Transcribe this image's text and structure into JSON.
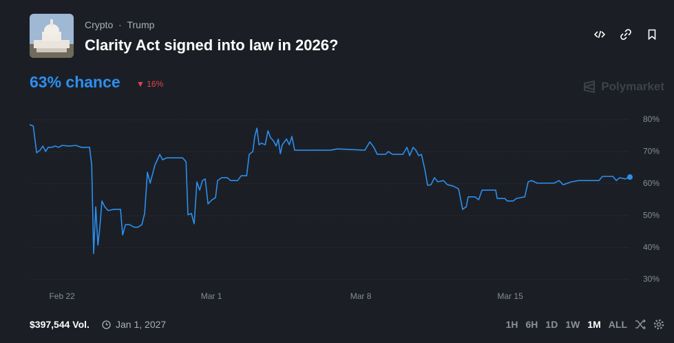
{
  "header": {
    "category": "Crypto",
    "tag": "Trump",
    "title": "Clarity Act signed into law in 2026?"
  },
  "chance": {
    "label": "63% chance",
    "change": "16%"
  },
  "brand": "Polymarket",
  "chart_data": {
    "type": "line",
    "x": [
      -1.52,
      -1.35,
      -1.19,
      -1.03,
      -0.9,
      -0.77,
      -0.65,
      -0.48,
      -0.32,
      -0.16,
      0,
      0.32,
      0.65,
      0.9,
      1.29,
      1.39,
      1.48,
      1.58,
      1.68,
      1.77,
      1.87,
      2.0,
      2.16,
      2.42,
      2.74,
      2.84,
      2.97,
      3.16,
      3.39,
      3.55,
      3.74,
      3.87,
      4.0,
      4.13,
      4.35,
      4.58,
      4.71,
      4.9,
      5.65,
      5.81,
      5.9,
      6.06,
      6.19,
      6.32,
      6.45,
      6.58,
      6.71,
      6.84,
      7.03,
      7.19,
      7.29,
      7.48,
      7.74,
      7.9,
      8.23,
      8.39,
      8.65,
      8.77,
      8.94,
      9.03,
      9.13,
      9.23,
      9.35,
      9.52,
      9.65,
      9.77,
      9.9,
      10.03,
      10.13,
      10.23,
      10.32,
      10.52,
      10.65,
      10.77,
      10.9,
      11.29,
      12.58,
      12.9,
      14.19,
      14.42,
      14.61,
      14.77,
      15.16,
      15.29,
      15.48,
      15.97,
      16.16,
      16.29,
      16.45,
      16.58,
      16.71,
      16.84,
      17.0,
      17.13,
      17.29,
      17.45,
      17.61,
      17.87,
      18.06,
      18.32,
      18.58,
      18.77,
      18.94,
      19.03,
      19.35,
      19.52,
      19.68,
      20.32,
      20.39,
      20.74,
      20.87,
      21.13,
      21.29,
      21.68,
      21.84,
      22.0,
      22.26,
      23.06,
      23.29,
      23.48,
      23.87,
      24.19,
      25.16,
      25.32,
      25.81,
      25.97,
      26.13,
      26.39,
      26.61
    ],
    "series": [
      {
        "name": "Yes",
        "color": "#2d8ff0",
        "values": [
          78.5,
          78.1,
          69.7,
          70.5,
          71.8,
          70.1,
          71.4,
          71.4,
          71.8,
          71.4,
          72.0,
          71.8,
          72.0,
          71.4,
          71.4,
          65.8,
          38.2,
          52.8,
          40.8,
          46.4,
          54.6,
          52.8,
          51.6,
          52.0,
          52.0,
          44.0,
          47.2,
          47.2,
          46.4,
          46.4,
          47.2,
          50.7,
          63.6,
          60.2,
          65.8,
          69.2,
          67.5,
          68.1,
          68.1,
          66.9,
          50.3,
          50.7,
          47.5,
          60.6,
          58.0,
          61.0,
          61.5,
          53.7,
          55.0,
          55.6,
          61.0,
          61.9,
          61.9,
          61.0,
          61.0,
          62.5,
          62.5,
          69.2,
          70.1,
          74.8,
          77.4,
          72.2,
          72.7,
          72.2,
          76.6,
          74.4,
          73.5,
          71.8,
          74.0,
          69.4,
          72.2,
          74.0,
          72.2,
          74.8,
          70.5,
          70.5,
          70.5,
          70.9,
          70.5,
          73.1,
          71.4,
          69.2,
          69.2,
          70.1,
          69.2,
          69.2,
          71.4,
          68.8,
          71.4,
          70.5,
          68.8,
          69.2,
          64.5,
          59.5,
          59.7,
          61.9,
          60.6,
          61.0,
          59.7,
          59.3,
          58.4,
          52.0,
          52.8,
          55.9,
          55.9,
          55.0,
          58.0,
          58.0,
          55.4,
          55.4,
          54.6,
          54.6,
          55.4,
          55.9,
          60.6,
          61.0,
          60.2,
          60.2,
          61.0,
          59.7,
          60.6,
          61.0,
          61.0,
          62.3,
          62.3,
          61.0,
          61.9,
          61.5,
          62.1
        ]
      }
    ],
    "xlim": [
      -1.52,
      26.61
    ],
    "xticks": [
      {
        "value": 0,
        "label": "Feb 22"
      },
      {
        "value": 7,
        "label": "Mar 1"
      },
      {
        "value": 14,
        "label": "Mar 8"
      },
      {
        "value": 21,
        "label": "Mar 15"
      }
    ],
    "ylim": [
      30,
      80
    ],
    "yticks": [
      {
        "value": 80,
        "label": "80%"
      },
      {
        "value": 70,
        "label": "70%"
      },
      {
        "value": 60,
        "label": "60%"
      },
      {
        "value": 50,
        "label": "50%"
      },
      {
        "value": 40,
        "label": "40%"
      },
      {
        "value": 30,
        "label": "30%"
      }
    ],
    "grid": true
  },
  "footer": {
    "volume": "$397,544 Vol.",
    "end_date": "Jan 1, 2027",
    "ranges": [
      "1H",
      "6H",
      "1D",
      "1W",
      "1M",
      "ALL"
    ],
    "active_range": "1M"
  }
}
